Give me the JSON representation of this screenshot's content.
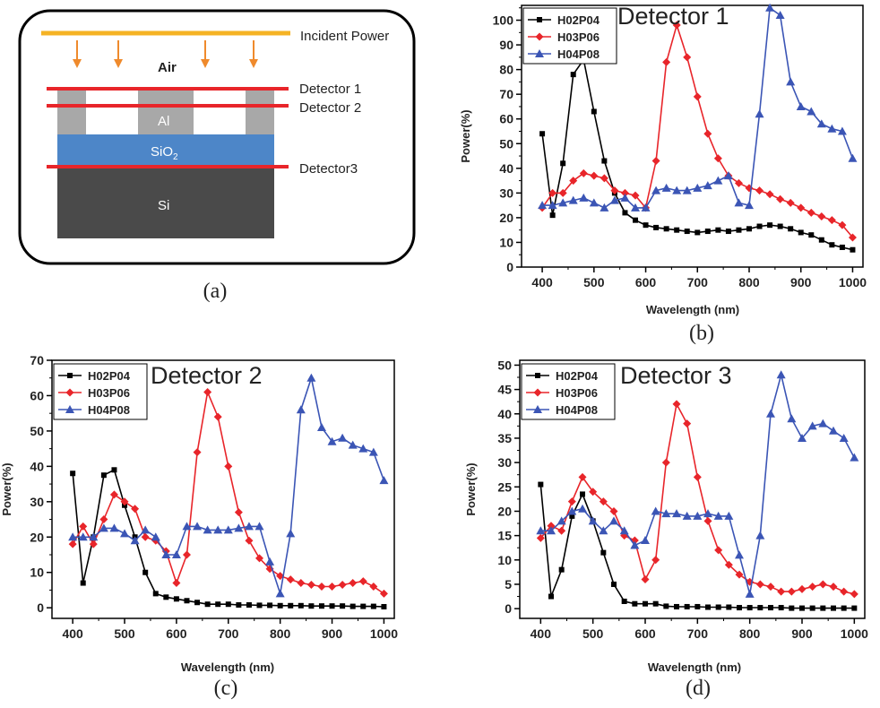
{
  "schematic": {
    "incident_label": "Incident Power",
    "air_label": "Air",
    "al_label": "Al",
    "sio2_label": "SiO",
    "sio2_sub": "2",
    "si_label": "Si",
    "detector1_label": "Detector 1",
    "detector2_label": "Detector 2",
    "detector3_label": "Detector3",
    "panel_label": "(a)",
    "colors": {
      "incident": "#f5b324",
      "arrow": "#ef8a2c",
      "detector": "#e8252a",
      "al": "#a8a8a8",
      "sio2": "#4d86c8",
      "si": "#4a4a4a"
    }
  },
  "chart_data": [
    {
      "type": "line",
      "panel_label": "(b)",
      "title": "Detector 1",
      "xlabel": "Wavelength (nm)",
      "ylabel": "Power(%)",
      "xlim": [
        360,
        1020
      ],
      "ylim": [
        0,
        106
      ],
      "xticks": [
        400,
        500,
        600,
        700,
        800,
        900,
        1000
      ],
      "yticks": [
        0,
        10,
        20,
        30,
        40,
        50,
        60,
        70,
        80,
        90,
        100
      ],
      "legend": "top-left",
      "series": [
        {
          "name": "H02P04",
          "color": "#000000",
          "marker": "square",
          "x": [
            400,
            420,
            440,
            460,
            480,
            500,
            520,
            540,
            560,
            580,
            600,
            620,
            640,
            660,
            680,
            700,
            720,
            740,
            760,
            780,
            800,
            820,
            840,
            860,
            880,
            900,
            920,
            940,
            960,
            980,
            1000
          ],
          "y": [
            54,
            21,
            42,
            78,
            84,
            63,
            43,
            30,
            22,
            19,
            17,
            16,
            15.5,
            15,
            14.5,
            14,
            14.5,
            15,
            14.5,
            15,
            15.5,
            16.5,
            17,
            16.5,
            15.5,
            14,
            13,
            11,
            9,
            8,
            7
          ]
        },
        {
          "name": "H03P06",
          "color": "#e8252a",
          "marker": "diamond",
          "x": [
            400,
            420,
            440,
            460,
            480,
            500,
            520,
            540,
            560,
            580,
            600,
            620,
            640,
            660,
            680,
            700,
            720,
            740,
            760,
            780,
            800,
            820,
            840,
            860,
            880,
            900,
            920,
            940,
            960,
            980,
            1000
          ],
          "y": [
            24,
            30,
            30,
            35,
            38,
            37,
            36,
            31,
            30,
            29,
            24,
            43,
            83,
            98,
            85,
            69,
            54,
            44,
            37,
            34,
            32,
            31,
            29.5,
            27.5,
            26,
            24,
            22,
            20.5,
            19,
            17,
            12
          ]
        },
        {
          "name": "H04P08",
          "color": "#3b55b5",
          "marker": "triangle",
          "x": [
            400,
            420,
            440,
            460,
            480,
            500,
            520,
            540,
            560,
            580,
            600,
            620,
            640,
            660,
            680,
            700,
            720,
            740,
            760,
            780,
            800,
            820,
            840,
            860,
            880,
            900,
            920,
            940,
            960,
            980,
            1000
          ],
          "y": [
            25,
            25,
            26,
            27,
            28,
            26,
            24,
            27,
            28,
            24,
            24,
            31,
            32,
            31,
            31,
            32,
            33,
            35,
            37,
            26,
            25,
            62,
            105,
            102,
            75,
            65,
            63,
            58,
            56,
            55,
            44
          ]
        }
      ]
    },
    {
      "type": "line",
      "panel_label": "(c)",
      "title": "Detector 2",
      "xlabel": "Wavelength (nm)",
      "ylabel": "Power(%)",
      "xlim": [
        360,
        1020
      ],
      "ylim": [
        -3,
        70
      ],
      "xticks": [
        400,
        500,
        600,
        700,
        800,
        900,
        1000
      ],
      "yticks": [
        0,
        10,
        20,
        30,
        40,
        50,
        60,
        70
      ],
      "legend": "top-left",
      "series": [
        {
          "name": "H02P04",
          "color": "#000000",
          "marker": "square",
          "x": [
            400,
            420,
            440,
            460,
            480,
            500,
            520,
            540,
            560,
            580,
            600,
            620,
            640,
            660,
            680,
            700,
            720,
            740,
            760,
            780,
            800,
            820,
            840,
            860,
            880,
            900,
            920,
            940,
            960,
            980,
            1000
          ],
          "y": [
            38,
            7,
            20,
            37.5,
            39,
            29,
            20,
            10,
            4,
            3,
            2.5,
            2,
            1.5,
            1,
            1,
            1,
            0.8,
            0.8,
            0.7,
            0.7,
            0.6,
            0.6,
            0.6,
            0.5,
            0.5,
            0.5,
            0.5,
            0.4,
            0.4,
            0.4,
            0.3
          ]
        },
        {
          "name": "H03P06",
          "color": "#e8252a",
          "marker": "diamond",
          "x": [
            400,
            420,
            440,
            460,
            480,
            500,
            520,
            540,
            560,
            580,
            600,
            620,
            640,
            660,
            680,
            700,
            720,
            740,
            760,
            780,
            800,
            820,
            840,
            860,
            880,
            900,
            920,
            940,
            960,
            980,
            1000
          ],
          "y": [
            18,
            23,
            18,
            25,
            32,
            30,
            28,
            20,
            19,
            16,
            7,
            15,
            44,
            61,
            54,
            40,
            27,
            19,
            14,
            11,
            9,
            8,
            7,
            6.5,
            6,
            6,
            6.5,
            7,
            7.5,
            6,
            4
          ]
        },
        {
          "name": "H04P08",
          "color": "#3b55b5",
          "marker": "triangle",
          "x": [
            400,
            420,
            440,
            460,
            480,
            500,
            520,
            540,
            560,
            580,
            600,
            620,
            640,
            660,
            680,
            700,
            720,
            740,
            760,
            780,
            800,
            820,
            840,
            860,
            880,
            900,
            920,
            940,
            960,
            980,
            1000
          ],
          "y": [
            20,
            20,
            20,
            22.5,
            22.5,
            21,
            19,
            22,
            20,
            15,
            15,
            23,
            23,
            22,
            22,
            22,
            22.5,
            23,
            23,
            13,
            4,
            21,
            56,
            65,
            51,
            47,
            48,
            46,
            45,
            44,
            36
          ]
        }
      ]
    },
    {
      "type": "line",
      "panel_label": "(d)",
      "title": "Detector 3",
      "xlabel": "Wavelength (nm)",
      "ylabel": "Power(%)",
      "xlim": [
        360,
        1020
      ],
      "ylim": [
        -2,
        51
      ],
      "xticks": [
        400,
        500,
        600,
        700,
        800,
        900,
        1000
      ],
      "yticks": [
        0,
        5,
        10,
        15,
        20,
        25,
        30,
        35,
        40,
        45,
        50
      ],
      "legend": "top-left",
      "series": [
        {
          "name": "H02P04",
          "color": "#000000",
          "marker": "square",
          "x": [
            400,
            420,
            440,
            460,
            480,
            500,
            520,
            540,
            560,
            580,
            600,
            620,
            640,
            660,
            680,
            700,
            720,
            740,
            760,
            780,
            800,
            820,
            840,
            860,
            880,
            900,
            920,
            940,
            960,
            980,
            1000
          ],
          "y": [
            25.5,
            2.5,
            8,
            19,
            23.5,
            18,
            11.5,
            5,
            1.5,
            1,
            1,
            1,
            0.5,
            0.4,
            0.4,
            0.4,
            0.3,
            0.3,
            0.3,
            0.2,
            0.2,
            0.2,
            0.2,
            0.2,
            0.1,
            0.1,
            0.1,
            0.1,
            0.1,
            0.1,
            0.1
          ]
        },
        {
          "name": "H03P06",
          "color": "#e8252a",
          "marker": "diamond",
          "x": [
            400,
            420,
            440,
            460,
            480,
            500,
            520,
            540,
            560,
            580,
            600,
            620,
            640,
            660,
            680,
            700,
            720,
            740,
            760,
            780,
            800,
            820,
            840,
            860,
            880,
            900,
            920,
            940,
            960,
            980,
            1000
          ],
          "y": [
            14.5,
            17,
            16,
            22,
            27,
            24,
            22,
            20,
            15,
            14,
            6,
            10,
            30,
            42,
            38,
            27,
            18,
            12,
            9,
            7,
            5.5,
            5,
            4.5,
            3.5,
            3.5,
            4,
            4.5,
            5,
            4.5,
            3.5,
            3
          ]
        },
        {
          "name": "H04P08",
          "color": "#3b55b5",
          "marker": "triangle",
          "x": [
            400,
            420,
            440,
            460,
            480,
            500,
            520,
            540,
            560,
            580,
            600,
            620,
            640,
            660,
            680,
            700,
            720,
            740,
            760,
            780,
            800,
            820,
            840,
            860,
            880,
            900,
            920,
            940,
            960,
            980,
            1000
          ],
          "y": [
            16,
            16,
            18,
            20,
            20.5,
            18,
            16,
            18,
            16,
            13,
            14,
            20,
            19.5,
            19.5,
            19,
            19,
            19.5,
            19,
            19,
            11,
            3,
            15,
            40,
            48,
            39,
            35,
            37.5,
            38,
            36.5,
            35,
            31
          ]
        }
      ]
    }
  ]
}
